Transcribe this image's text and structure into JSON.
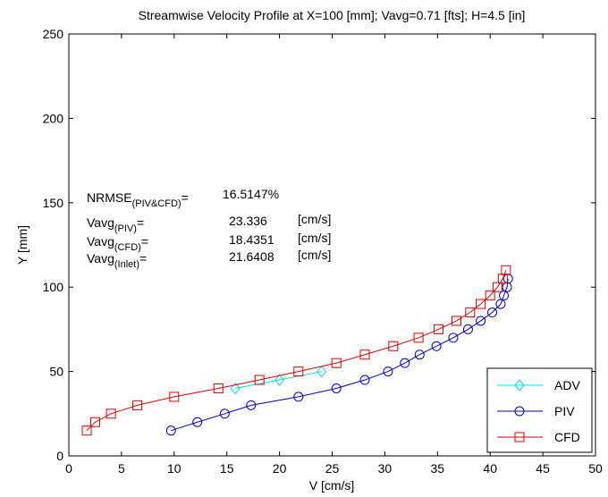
{
  "chart_data": {
    "type": "line",
    "title": "Streamwise Velocity Profile at X=100 [mm]; Vavg=0.71 [fts]; H=4.5 [in]",
    "xlabel": "V [cm/s]",
    "ylabel": "Y [mm]",
    "xlim": [
      0,
      50
    ],
    "ylim": [
      0,
      250
    ],
    "xticks": [
      0,
      5,
      10,
      15,
      20,
      25,
      30,
      35,
      40,
      45,
      50
    ],
    "yticks": [
      0,
      50,
      100,
      150,
      200,
      250
    ],
    "grid": false,
    "legend_position": "bottom-right",
    "series": [
      {
        "name": "ADV",
        "color": "#00e0e0",
        "marker": "diamond",
        "x": [
          15.8,
          20.0,
          24.0
        ],
        "y": [
          40,
          45,
          50
        ]
      },
      {
        "name": "PIV",
        "color": "#0000cc",
        "marker": "circle",
        "x": [
          9.7,
          12.2,
          14.8,
          17.3,
          21.8,
          25.4,
          28.1,
          30.3,
          31.9,
          33.3,
          34.9,
          36.5,
          37.9,
          39.1,
          40.2,
          41.0,
          41.3,
          41.6,
          41.7
        ],
        "y": [
          15,
          20,
          25,
          30,
          35,
          40,
          45,
          50,
          55,
          60,
          65,
          70,
          75,
          80,
          85,
          90,
          95,
          100,
          105
        ]
      },
      {
        "name": "CFD",
        "color": "#e00000",
        "marker": "square",
        "x": [
          1.7,
          2.5,
          4.0,
          6.5,
          10.0,
          14.2,
          18.1,
          21.8,
          25.4,
          28.1,
          30.8,
          33.2,
          35.1,
          36.8,
          38.1,
          39.1,
          40.0,
          40.7,
          41.2,
          41.5
        ],
        "y": [
          15,
          20,
          25,
          30,
          35,
          40,
          45,
          50,
          55,
          60,
          65,
          70,
          75,
          80,
          85,
          90,
          95,
          100,
          105,
          110
        ]
      }
    ],
    "annotations": {
      "nrmse": {
        "label": "NRMSE",
        "sub": "(PIV&CFD)",
        "eq": "=",
        "value": "16.5147%"
      },
      "rows": [
        {
          "label": "Vavg",
          "sub": "(PIV)",
          "eq": "=",
          "value": "23.336",
          "unit": "[cm/s]"
        },
        {
          "label": "Vavg",
          "sub": "(CFD)",
          "eq": "=",
          "value": "18.4351",
          "unit": "[cm/s]"
        },
        {
          "label": "Vavg",
          "sub": "(Inlet)",
          "eq": "=",
          "value": "21.6408",
          "unit": "[cm/s]"
        }
      ]
    }
  }
}
